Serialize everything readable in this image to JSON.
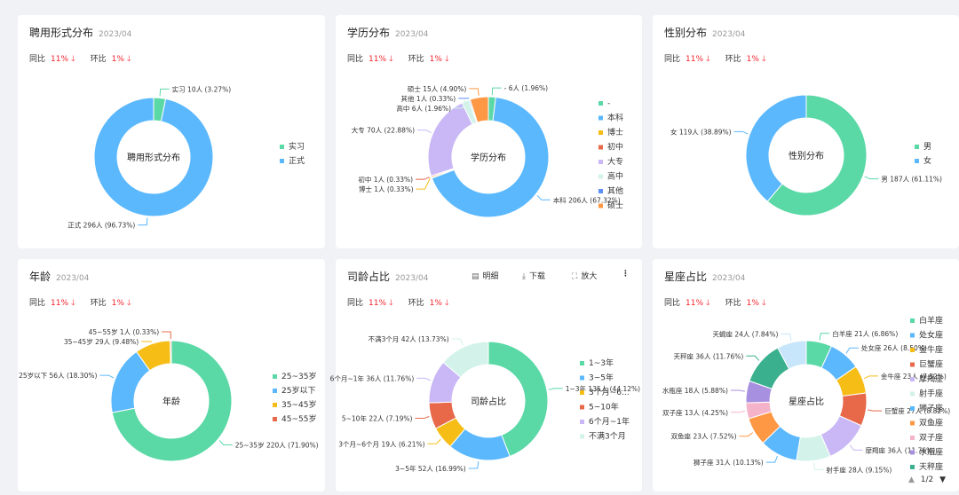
{
  "cards": [
    {
      "title": "聘用形式分布",
      "date": "2023/04",
      "center": "聘用形式分布",
      "metrics": {
        "yoy_label": "同比",
        "yoy_value": "11%",
        "mom_label": "环比",
        "mom_value": "1%"
      },
      "chart_data": {
        "type": "pie",
        "donut": true,
        "title": "聘用形式分布",
        "slices": [
          {
            "name": "实习",
            "value": 10,
            "label": "实习 10人 (3.27%)",
            "color": "#5ad8a6"
          },
          {
            "name": "正式",
            "value": 296,
            "label": "正式 296人 (96.73%)",
            "color": "#5bb8fd"
          }
        ],
        "legend": [
          "实习",
          "正式"
        ],
        "legend_placement": "right"
      }
    },
    {
      "title": "学历分布",
      "date": "2023/04",
      "center": "学历分布",
      "metrics": {
        "yoy_label": "同比",
        "yoy_value": "11%",
        "mom_label": "环比",
        "mom_value": "1%"
      },
      "chart_data": {
        "type": "pie",
        "donut": true,
        "title": "学历分布",
        "slices": [
          {
            "name": "-",
            "value": 6,
            "label": "- 6人 (1.96%)",
            "color": "#5ad8a6"
          },
          {
            "name": "本科",
            "value": 206,
            "label": "本科 206人 (67.32%)",
            "color": "#5bb8fd"
          },
          {
            "name": "博士",
            "value": 1,
            "label": "博士 1人 (0.33%)",
            "color": "#f6bd16"
          },
          {
            "name": "初中",
            "value": 1,
            "label": "初中 1人 (0.33%)",
            "color": "#e8684a"
          },
          {
            "name": "大专",
            "value": 70,
            "label": "大专 70人 (22.88%)",
            "color": "#c9b8f5"
          },
          {
            "name": "高中",
            "value": 6,
            "label": "高中 6人 (1.96%)",
            "color": "#d3f3ea"
          },
          {
            "name": "其他",
            "value": 1,
            "label": "其他 1人 (0.33%)",
            "color": "#5b8ff9"
          },
          {
            "name": "硕士",
            "value": 15,
            "label": "硕士 15人 (4.90%)",
            "color": "#ff9845"
          }
        ],
        "legend": [
          "-",
          "本科",
          "博士",
          "初中",
          "大专",
          "高中",
          "其他",
          "硕士"
        ],
        "legend_placement": "right"
      }
    },
    {
      "title": "性别分布",
      "date": "2023/04",
      "center": "性别分布",
      "metrics": {
        "yoy_label": "同比",
        "yoy_value": "11%",
        "mom_label": "环比",
        "mom_value": "1%"
      },
      "chart_data": {
        "type": "pie",
        "donut": true,
        "title": "性别分布",
        "slices": [
          {
            "name": "男",
            "value": 187,
            "label": "男 187人 (61.11%)",
            "color": "#5ad8a6"
          },
          {
            "name": "女",
            "value": 119,
            "label": "女 119人 (38.89%)",
            "color": "#5bb8fd"
          }
        ],
        "legend": [
          "男",
          "女"
        ],
        "legend_placement": "right"
      }
    },
    {
      "title": "年龄",
      "date": "2023/04",
      "center": "年龄",
      "metrics": {
        "yoy_label": "同比",
        "yoy_value": "11%",
        "mom_label": "环比",
        "mom_value": "1%"
      },
      "chart_data": {
        "type": "pie",
        "donut": true,
        "title": "年龄",
        "slices": [
          {
            "name": "25~35岁",
            "value": 220,
            "label": "25~35岁 220人 (71.90%)",
            "color": "#5ad8a6"
          },
          {
            "name": "25岁以下",
            "value": 56,
            "label": "25岁以下 56人 (18.30%)",
            "color": "#5bb8fd"
          },
          {
            "name": "35~45岁",
            "value": 29,
            "label": "35~45岁 29人 (9.48%)",
            "color": "#f6bd16"
          },
          {
            "name": "45~55岁",
            "value": 1,
            "label": "45~55岁 1人 (0.33%)",
            "color": "#e8684a"
          }
        ],
        "legend": [
          "25~35岁",
          "25岁以下",
          "35~45岁",
          "45~55岁"
        ],
        "legend_placement": "right"
      }
    },
    {
      "title": "司龄占比",
      "date": "2023/04",
      "center": "司龄占比",
      "metrics": {
        "yoy_label": "同比",
        "yoy_value": "11%",
        "mom_label": "环比",
        "mom_value": "1%"
      },
      "toolbar": {
        "detail": "明细",
        "download": "下载",
        "zoom": "放大"
      },
      "chart_data": {
        "type": "pie",
        "donut": true,
        "title": "司龄占比",
        "slices": [
          {
            "name": "1~3年",
            "value": 135,
            "label": "1~3年 135人 (44.12%)",
            "color": "#5ad8a6"
          },
          {
            "name": "3~5年",
            "value": 52,
            "label": "3~5年 52人 (16.99%)",
            "color": "#5bb8fd"
          },
          {
            "name": "3个月~6个月",
            "value": 19,
            "label": "3个月~6个月 19人 (6.21%)",
            "color": "#f6bd16"
          },
          {
            "name": "5~10年",
            "value": 22,
            "label": "5~10年 22人 (7.19%)",
            "color": "#e8684a"
          },
          {
            "name": "6个月~1年",
            "value": 36,
            "label": "6个月~1年 36人 (11.76%)",
            "color": "#c9b8f5"
          },
          {
            "name": "不满3个月",
            "value": 42,
            "label": "不满3个月 42人 (13.73%)",
            "color": "#d3f3ea"
          }
        ],
        "legend": [
          "1~3年",
          "3~5年",
          "3个月~6...",
          "5~10年",
          "6个月~1年",
          "不满3个月"
        ],
        "legend_placement": "right"
      }
    },
    {
      "title": "星座占比",
      "date": "2023/04",
      "center": "星座占比",
      "metrics": {
        "yoy_label": "同比",
        "yoy_value": "11%",
        "mom_label": "环比",
        "mom_value": "1%"
      },
      "pager": "1/2",
      "chart_data": {
        "type": "pie",
        "donut": true,
        "title": "星座占比",
        "slices": [
          {
            "name": "白羊座",
            "value": 21,
            "label": "白羊座 21人 (6.86%)",
            "color": "#5ad8a6"
          },
          {
            "name": "处女座",
            "value": 26,
            "label": "处女座 26人 (8.50%)",
            "color": "#5bb8fd"
          },
          {
            "name": "金牛座",
            "value": 23,
            "label": "金牛座 23人 (7.52%)",
            "color": "#f6bd16"
          },
          {
            "name": "巨蟹座",
            "value": 27,
            "label": "巨蟹座 27人 (8.82%)",
            "color": "#e8684a"
          },
          {
            "name": "摩羯座",
            "value": 36,
            "label": "摩羯座 36人 (11.76%)",
            "color": "#c9b8f5"
          },
          {
            "name": "射手座",
            "value": 28,
            "label": "射手座 28人 (9.15%)",
            "color": "#d3f3ea"
          },
          {
            "name": "狮子座",
            "value": 31,
            "label": "狮子座 31人 (10.13%)",
            "color": "#5bb8fd"
          },
          {
            "name": "双鱼座",
            "value": 23,
            "label": "双鱼座 23人 (7.52%)",
            "color": "#ff9845"
          },
          {
            "name": "双子座",
            "value": 13,
            "label": "双子座 13人 (4.25%)",
            "color": "#f4b3c9"
          },
          {
            "name": "水瓶座",
            "value": 18,
            "label": "水瓶座 18人 (5.88%)",
            "color": "#a890e0"
          },
          {
            "name": "天秤座",
            "value": 36,
            "label": "天秤座 36人 (11.76%)",
            "color": "#3bb08f"
          },
          {
            "name": "天蝎座",
            "value": 24,
            "label": "天蝎座 24人 (7.84%)",
            "color": "#c7e5fb"
          }
        ],
        "legend": [
          "白羊座",
          "处女座",
          "金牛座",
          "巨蟹座",
          "摩羯座",
          "射手座",
          "狮子座",
          "双鱼座",
          "双子座",
          "水瓶座",
          "天秤座"
        ],
        "legend_placement": "right"
      }
    }
  ]
}
